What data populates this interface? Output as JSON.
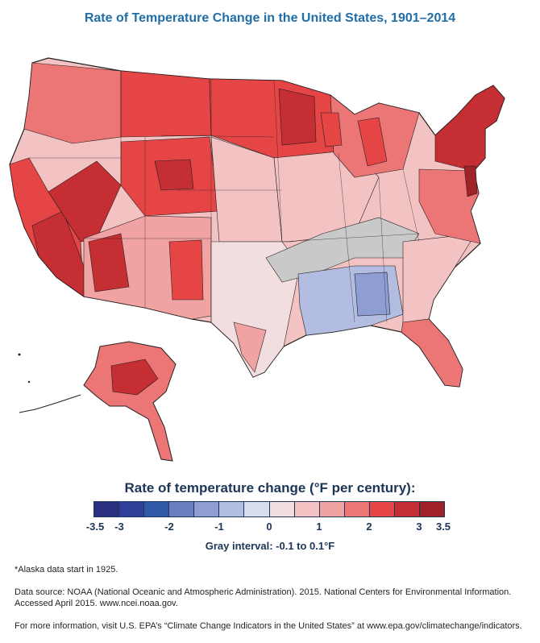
{
  "title": "Rate of Temperature Change in the United States, 1901–2014",
  "legend": {
    "title": "Rate of temperature change (°F per century):",
    "colors": [
      "#2b2f7e",
      "#2f3f97",
      "#2f5aa8",
      "#6a7fc2",
      "#8f9ed2",
      "#b3bde2",
      "#d7dcef",
      "#f2dede",
      "#f3c3c3",
      "#f1a3a3",
      "#ec7676",
      "#e64546",
      "#c52e33",
      "#9f2226"
    ],
    "tick_labels": [
      "-3.5",
      "-3",
      "-2",
      "-1",
      "0",
      "1",
      "2",
      "3",
      "3.5"
    ],
    "gray_interval": "Gray interval: -0.1 to 0.1°F"
  },
  "notes": {
    "alaska": "*Alaska data start in 1925.",
    "source_line1": "Data source: NOAA (National Oceanic and Atmospheric Administration). 2015. National Centers for Environmental Information.",
    "source_line2": "Accessed April 2015. www.ncei.noaa.gov.",
    "more_info": "For more information, visit U.S. EPA’s “Climate Change Indicators in the United States” at www.epa.gov/climatechange/indicators."
  }
}
